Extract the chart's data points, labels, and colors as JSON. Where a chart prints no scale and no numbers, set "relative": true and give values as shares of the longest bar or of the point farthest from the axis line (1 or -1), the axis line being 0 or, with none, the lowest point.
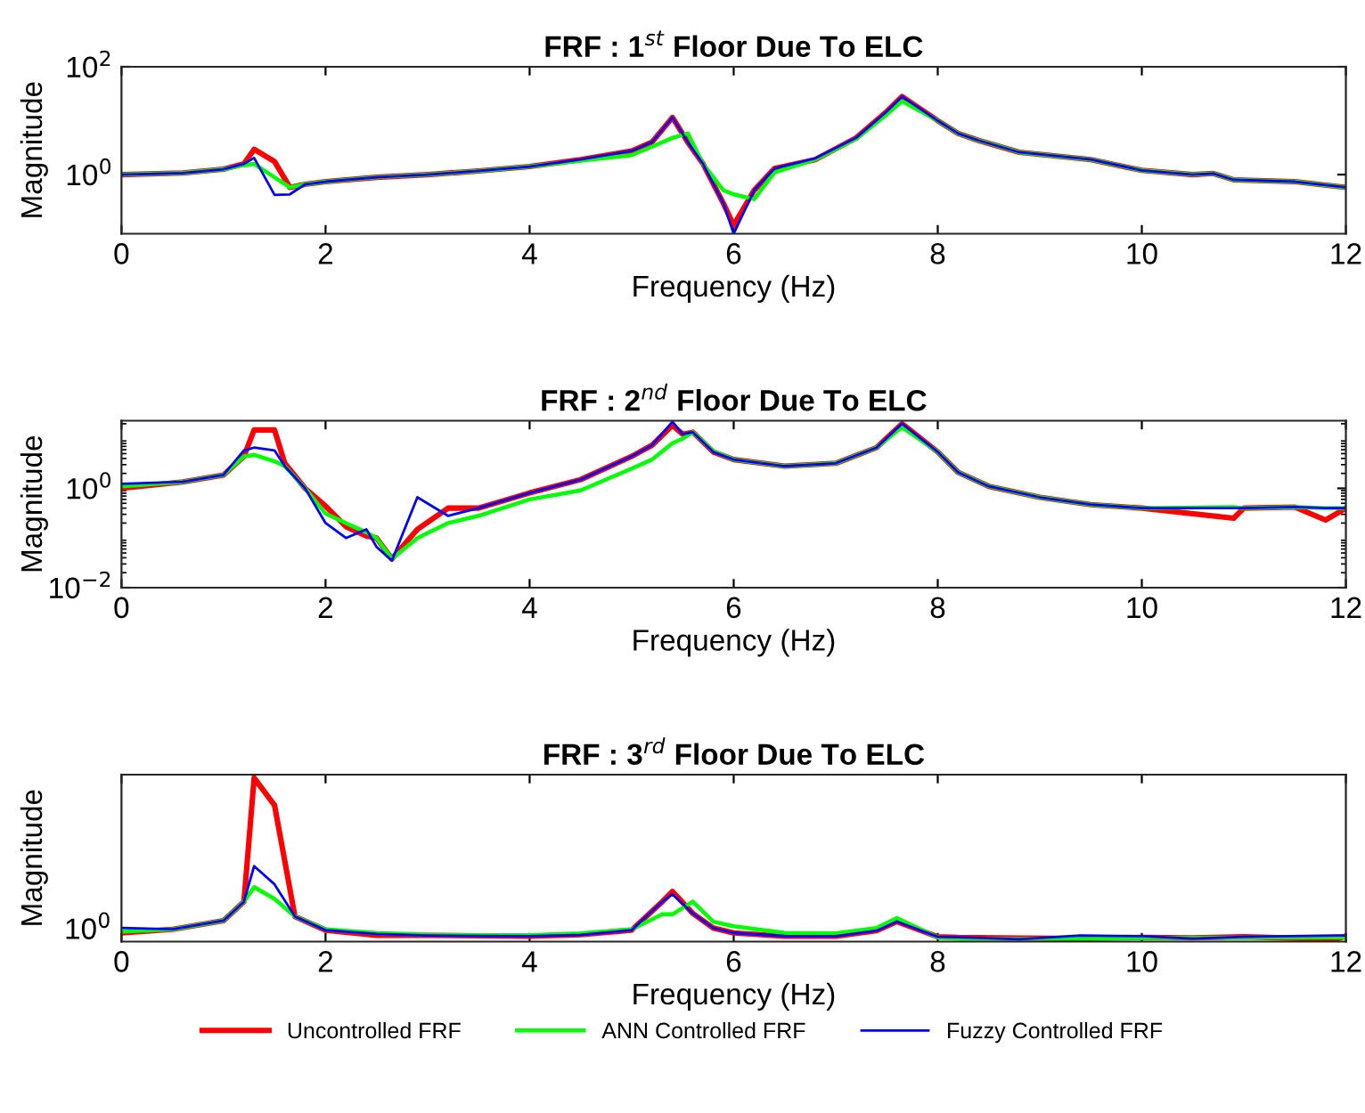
{
  "chart_data": [
    {
      "type": "line",
      "title": "FRF : 1$^{st}$ Floor Due To ELC",
      "xlabel": "Frequency (Hz)",
      "ylabel": "Magnitude",
      "log": "y",
      "legend": "bottom",
      "grid": false,
      "x": [
        0,
        0.6,
        1.0,
        1.2,
        1.3,
        1.5,
        1.65,
        1.8,
        2.0,
        2.5,
        3,
        3.5,
        4,
        4.5,
        5,
        5.2,
        5.4,
        5.55,
        5.7,
        5.9,
        6.0,
        6.2,
        6.4,
        6.8,
        7.2,
        7.5,
        7.65,
        8.0,
        8.2,
        8.4,
        8.8,
        9.5,
        10,
        10.5,
        10.7,
        10.9,
        11.5,
        12
      ],
      "xlim": [
        0,
        12
      ],
      "xticks": [
        0,
        2,
        4,
        6,
        8,
        10,
        12
      ],
      "ylim": [
        0.08,
        100
      ],
      "yticks": [
        {
          "value": 1,
          "label": "10$^{0}$"
        },
        {
          "value": 100,
          "label": "10$^{2}$"
        }
      ],
      "series": [
        {
          "name": "Uncontrolled FRF",
          "color": "#ff0000",
          "values": [
            1,
            1.07,
            1.26,
            1.58,
            2.95,
            1.75,
            0.58,
            0.66,
            0.74,
            0.89,
            1,
            1.17,
            1.41,
            1.9,
            2.75,
            4.0,
            11.5,
            4.0,
            1.58,
            0.29,
            0.115,
            0.51,
            1.3,
            1.9,
            4.8,
            14.8,
            28,
            10,
            5.8,
            4.3,
            2.6,
            1.9,
            1.2,
            1,
            1.05,
            0.8,
            0.74,
            0.58
          ]
        },
        {
          "name": "ANN Controlled FRF",
          "color": "#00ff00",
          "values": [
            1,
            1.07,
            1.26,
            1.5,
            1.58,
            0.89,
            0.58,
            0.66,
            0.74,
            0.89,
            1,
            1.17,
            1.41,
            1.8,
            2.3,
            3.3,
            4.8,
            5.8,
            1.58,
            0.51,
            0.43,
            0.35,
            1.1,
            1.9,
            4.6,
            13,
            23,
            10,
            5.8,
            4.3,
            2.6,
            1.9,
            1.2,
            1,
            1.05,
            0.8,
            0.74,
            0.58
          ]
        },
        {
          "name": "Fuzzy Controlled FRF",
          "color": "#0000ff",
          "values": [
            1,
            1.07,
            1.26,
            1.58,
            2.04,
            0.42,
            0.43,
            0.66,
            0.74,
            0.89,
            1,
            1.17,
            1.41,
            1.9,
            2.75,
            4.0,
            11.5,
            4.0,
            1.58,
            0.29,
            0.08,
            0.51,
            1.3,
            2.0,
            4.8,
            14.8,
            28,
            10,
            5.8,
            4.3,
            2.6,
            1.9,
            1.2,
            1,
            1.05,
            0.8,
            0.74,
            0.58
          ]
        }
      ]
    },
    {
      "type": "line",
      "title": "FRF : 2$^{nd}$ Floor Due To ELC",
      "xlabel": "Frequency (Hz)",
      "ylabel": "Magnitude",
      "log": "y",
      "legend": false,
      "grid": false,
      "x": [
        0,
        0.6,
        1.0,
        1.2,
        1.3,
        1.5,
        1.6,
        1.8,
        2.0,
        2.2,
        2.4,
        2.5,
        2.65,
        2.9,
        3.2,
        3.5,
        4.0,
        4.5,
        5.0,
        5.2,
        5.4,
        5.5,
        5.6,
        5.8,
        6.0,
        6.5,
        7.0,
        7.4,
        7.65,
        8.0,
        8.2,
        8.5,
        9.0,
        9.5,
        10,
        10.9,
        11,
        11.5,
        11.8,
        12
      ],
      "xlim": [
        0,
        12
      ],
      "xticks": [
        0,
        2,
        4,
        6,
        8,
        10,
        12
      ],
      "ylim": [
        0.01,
        23
      ],
      "yticks": [
        {
          "value": 0.01,
          "label": "10$^{−2}$"
        },
        {
          "value": 1,
          "label": "10$^{0}$"
        }
      ],
      "series": [
        {
          "color": "#ff0000",
          "values": [
            1.0,
            1.35,
            1.86,
            4.4,
            15,
            15,
            3.2,
            1.0,
            0.44,
            0.17,
            0.11,
            0.1,
            0.038,
            0.15,
            0.4,
            0.4,
            0.81,
            1.5,
            4.4,
            7.4,
            18.6,
            12.3,
            13.5,
            5.4,
            3.8,
            2.8,
            3.2,
            6.6,
            20,
            5.4,
            2.1,
            1.1,
            0.66,
            0.47,
            0.4,
            0.25,
            0.4,
            0.42,
            0.23,
            0.4
          ]
        },
        {
          "color": "#00ff00",
          "values": [
            1.1,
            1.35,
            1.86,
            4.4,
            4.7,
            3.5,
            2.8,
            1.0,
            0.31,
            0.2,
            0.13,
            0.1,
            0.038,
            0.1,
            0.2,
            0.28,
            0.6,
            0.91,
            2.5,
            3.8,
            8.1,
            10,
            13.5,
            5.6,
            3.8,
            2.8,
            3.2,
            6.6,
            17,
            5.4,
            2.1,
            1.1,
            0.66,
            0.47,
            0.4,
            0.42,
            0.4,
            0.42,
            0.4,
            0.4
          ]
        },
        {
          "color": "#0000ff",
          "values": [
            1.23,
            1.35,
            1.86,
            5.8,
            6.6,
            5.8,
            2.8,
            1.0,
            0.2,
            0.1,
            0.15,
            0.066,
            0.035,
            0.66,
            0.28,
            0.4,
            0.81,
            1.5,
            4.4,
            7.4,
            22,
            12.3,
            13.5,
            5.4,
            3.8,
            2.8,
            3.2,
            6.6,
            20,
            5.4,
            2.1,
            1.1,
            0.66,
            0.47,
            0.4,
            0.4,
            0.4,
            0.42,
            0.4,
            0.4
          ]
        }
      ]
    },
    {
      "type": "line",
      "title": "FRF : 3$^{rd}$ Floor Due To ELC",
      "xlabel": "Frequency (Hz)",
      "ylabel": "Magnitude",
      "legend": false,
      "grid": false,
      "relative": true,
      "annotations": [
        "10$^{0}$"
      ],
      "x": [
        0,
        0.5,
        1.0,
        1.2,
        1.3,
        1.5,
        1.7,
        2.0,
        2.5,
        3.0,
        3.5,
        4.0,
        4.5,
        5.0,
        5.3,
        5.4,
        5.6,
        5.8,
        6.0,
        6.5,
        7.0,
        7.4,
        7.6,
        8.0,
        8.2,
        8.8,
        9.4,
        10,
        10.5,
        11,
        11.9,
        12
      ],
      "xlim": [
        0,
        12
      ],
      "xticks": [
        0,
        2,
        4,
        6,
        8,
        10,
        12
      ],
      "series": [
        {
          "color": "#ff0000",
          "values": [
            0.053,
            0.075,
            0.128,
            0.244,
            1,
            0.833,
            0.153,
            0.07,
            0.038,
            0.038,
            0.035,
            0.033,
            0.042,
            0.07,
            0.244,
            0.306,
            0.172,
            0.083,
            0.053,
            0.033,
            0.033,
            0.067,
            0.122,
            0.029,
            0.025,
            0.022,
            0.019,
            0.026,
            0.023,
            0.029,
            0.014,
            0.033
          ]
        },
        {
          "color": "#00ff00",
          "values": [
            0.061,
            0.075,
            0.128,
            0.244,
            0.333,
            0.261,
            0.153,
            0.075,
            0.053,
            0.042,
            0.04,
            0.04,
            0.05,
            0.075,
            0.167,
            0.167,
            0.244,
            0.122,
            0.094,
            0.053,
            0.05,
            0.083,
            0.144,
            0.026,
            0.017,
            0.017,
            0.018,
            0.022,
            0.023,
            0.025,
            0.026,
            0.027
          ]
        },
        {
          "color": "#0000ff",
          "values": [
            0.083,
            0.075,
            0.128,
            0.244,
            0.461,
            0.35,
            0.153,
            0.07,
            0.047,
            0.038,
            0.035,
            0.033,
            0.042,
            0.07,
            0.244,
            0.289,
            0.172,
            0.083,
            0.053,
            0.034,
            0.033,
            0.067,
            0.122,
            0.029,
            0.027,
            0.014,
            0.038,
            0.033,
            0.018,
            0.029,
            0.038,
            0.038
          ]
        }
      ]
    }
  ]
}
